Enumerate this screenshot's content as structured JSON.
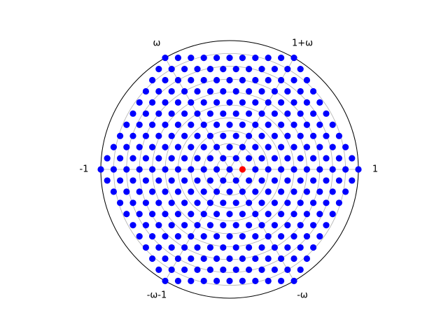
{
  "chart_data": {
    "type": "scatter",
    "title": "",
    "coordinate_system": "polar",
    "grid": true,
    "lattice": "hexagonal (Eisenstein integers a + b·ω, ω = e^(2πi/3))",
    "extent": "hexagon, max 10 lattice steps from origin along each axis (|a|, |b|, |a−b| ≤ 10)",
    "step": 0.1,
    "radial_max": 1.0,
    "radial_gridlines": 10,
    "series": [
      {
        "color": "#0000ff",
        "marker": "circle",
        "points": "all lattice points in extent except (0.1, 0)"
      },
      {
        "color": "#ff0000",
        "marker": "circle",
        "points": [
          [
            0.1,
            0.0
          ]
        ]
      }
    ],
    "direction_labels": [
      {
        "text": "1",
        "angle_deg": 0
      },
      {
        "text": "1+ω",
        "angle_deg": 60
      },
      {
        "text": "ω",
        "angle_deg": 120
      },
      {
        "text": "-1",
        "angle_deg": 180
      },
      {
        "text": "-ω-1",
        "angle_deg": 240
      },
      {
        "text": "-ω",
        "angle_deg": 300
      }
    ]
  }
}
